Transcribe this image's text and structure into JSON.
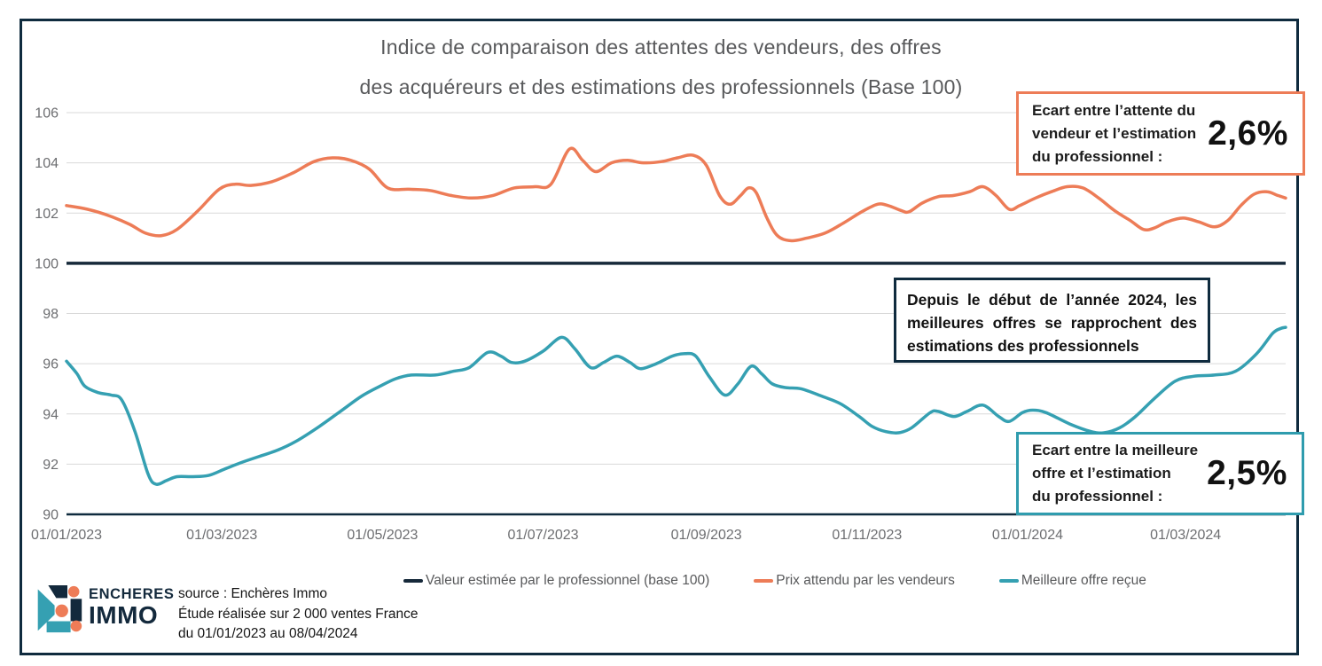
{
  "title": {
    "line1": "Indice de comparaison des attentes des vendeurs, des offres",
    "line2": "des acquéreurs et des estimations des professionnels (Base 100)"
  },
  "colors": {
    "navy": "#0f2b3e",
    "orange": "#ed7c57",
    "teal": "#35a0b2",
    "gridline": "#d9d9d9",
    "axis_label": "#6d6e71",
    "title_gray": "#58595b"
  },
  "chart_data": {
    "type": "line",
    "title": "Indice de comparaison des attentes des vendeurs, des offres des acquéreurs et des estimations des professionnels (Base 100)",
    "xlabel": "",
    "ylabel": "",
    "ylim": [
      90,
      106
    ],
    "ytick_step": 2,
    "grid": "horizontal",
    "legend_position": "bottom",
    "x_axis": {
      "start_date": "01/01/2023",
      "end_date": "08/04/2024",
      "total_days": 463,
      "ticks": [
        {
          "day": 0,
          "label": "01/01/2023"
        },
        {
          "day": 59,
          "label": "01/03/2023"
        },
        {
          "day": 120,
          "label": "01/05/2023"
        },
        {
          "day": 181,
          "label": "01/07/2023"
        },
        {
          "day": 243,
          "label": "01/09/2023"
        },
        {
          "day": 304,
          "label": "01/11/2023"
        },
        {
          "day": 365,
          "label": "01/01/2024"
        },
        {
          "day": 425,
          "label": "01/03/2024"
        }
      ]
    },
    "series": [
      {
        "name": "Valeur estimée par le professionnel (base 100)",
        "type": "baseline",
        "color": "#16293a",
        "value": 100
      },
      {
        "name": "Prix attendu par les vendeurs",
        "type": "line",
        "color": "#ed7c57",
        "points": [
          [
            0,
            102.3
          ],
          [
            8,
            102.15
          ],
          [
            16,
            101.9
          ],
          [
            24,
            101.55
          ],
          [
            30,
            101.2
          ],
          [
            36,
            101.1
          ],
          [
            42,
            101.35
          ],
          [
            50,
            102.1
          ],
          [
            58,
            102.95
          ],
          [
            64,
            103.15
          ],
          [
            70,
            103.1
          ],
          [
            78,
            103.25
          ],
          [
            86,
            103.6
          ],
          [
            94,
            104.05
          ],
          [
            101,
            104.2
          ],
          [
            108,
            104.1
          ],
          [
            115,
            103.75
          ],
          [
            122,
            103.0
          ],
          [
            130,
            102.95
          ],
          [
            138,
            102.9
          ],
          [
            146,
            102.7
          ],
          [
            154,
            102.6
          ],
          [
            162,
            102.7
          ],
          [
            170,
            103.0
          ],
          [
            178,
            103.05
          ],
          [
            184,
            103.15
          ],
          [
            191,
            104.55
          ],
          [
            196,
            104.1
          ],
          [
            201,
            103.65
          ],
          [
            207,
            104.0
          ],
          [
            213,
            104.1
          ],
          [
            219,
            104.0
          ],
          [
            226,
            104.05
          ],
          [
            232,
            104.2
          ],
          [
            238,
            104.3
          ],
          [
            243,
            103.9
          ],
          [
            248,
            102.7
          ],
          [
            252,
            102.35
          ],
          [
            256,
            102.7
          ],
          [
            259,
            103.0
          ],
          [
            262,
            102.8
          ],
          [
            266,
            101.8
          ],
          [
            270,
            101.1
          ],
          [
            275,
            100.9
          ],
          [
            281,
            101.0
          ],
          [
            288,
            101.2
          ],
          [
            295,
            101.6
          ],
          [
            302,
            102.05
          ],
          [
            308,
            102.35
          ],
          [
            312,
            102.3
          ],
          [
            317,
            102.1
          ],
          [
            320,
            102.05
          ],
          [
            325,
            102.4
          ],
          [
            331,
            102.65
          ],
          [
            337,
            102.7
          ],
          [
            343,
            102.85
          ],
          [
            348,
            103.05
          ],
          [
            353,
            102.7
          ],
          [
            358,
            102.15
          ],
          [
            362,
            102.3
          ],
          [
            368,
            102.6
          ],
          [
            374,
            102.85
          ],
          [
            380,
            103.05
          ],
          [
            386,
            103.0
          ],
          [
            392,
            102.6
          ],
          [
            398,
            102.1
          ],
          [
            404,
            101.7
          ],
          [
            409,
            101.35
          ],
          [
            413,
            101.4
          ],
          [
            418,
            101.65
          ],
          [
            424,
            101.8
          ],
          [
            430,
            101.65
          ],
          [
            436,
            101.45
          ],
          [
            441,
            101.7
          ],
          [
            446,
            102.3
          ],
          [
            451,
            102.75
          ],
          [
            456,
            102.85
          ],
          [
            460,
            102.7
          ],
          [
            463,
            102.6
          ]
        ]
      },
      {
        "name": "Meilleure offre reçue",
        "type": "line",
        "color": "#35a0b2",
        "points": [
          [
            0,
            96.1
          ],
          [
            4,
            95.6
          ],
          [
            7,
            95.1
          ],
          [
            12,
            94.85
          ],
          [
            17,
            94.75
          ],
          [
            21,
            94.55
          ],
          [
            26,
            93.3
          ],
          [
            31,
            91.6
          ],
          [
            34,
            91.2
          ],
          [
            38,
            91.35
          ],
          [
            42,
            91.5
          ],
          [
            48,
            91.5
          ],
          [
            54,
            91.55
          ],
          [
            60,
            91.8
          ],
          [
            66,
            92.05
          ],
          [
            73,
            92.3
          ],
          [
            80,
            92.55
          ],
          [
            87,
            92.9
          ],
          [
            96,
            93.5
          ],
          [
            104,
            94.1
          ],
          [
            112,
            94.7
          ],
          [
            119,
            95.1
          ],
          [
            125,
            95.4
          ],
          [
            131,
            95.55
          ],
          [
            140,
            95.55
          ],
          [
            147,
            95.7
          ],
          [
            153,
            95.85
          ],
          [
            160,
            96.45
          ],
          [
            165,
            96.3
          ],
          [
            169,
            96.05
          ],
          [
            174,
            96.1
          ],
          [
            181,
            96.5
          ],
          [
            188,
            97.05
          ],
          [
            193,
            96.6
          ],
          [
            199,
            95.85
          ],
          [
            204,
            96.05
          ],
          [
            209,
            96.3
          ],
          [
            214,
            96.05
          ],
          [
            218,
            95.8
          ],
          [
            224,
            96.0
          ],
          [
            230,
            96.3
          ],
          [
            235,
            96.4
          ],
          [
            239,
            96.3
          ],
          [
            244,
            95.5
          ],
          [
            250,
            94.75
          ],
          [
            255,
            95.2
          ],
          [
            260,
            95.9
          ],
          [
            264,
            95.6
          ],
          [
            268,
            95.2
          ],
          [
            273,
            95.05
          ],
          [
            279,
            95.0
          ],
          [
            287,
            94.7
          ],
          [
            294,
            94.4
          ],
          [
            301,
            93.9
          ],
          [
            306,
            93.5
          ],
          [
            311,
            93.3
          ],
          [
            316,
            93.25
          ],
          [
            321,
            93.45
          ],
          [
            328,
            94.05
          ],
          [
            331,
            94.1
          ],
          [
            337,
            93.9
          ],
          [
            342,
            94.1
          ],
          [
            348,
            94.35
          ],
          [
            354,
            93.9
          ],
          [
            358,
            93.7
          ],
          [
            363,
            94.05
          ],
          [
            367,
            94.15
          ],
          [
            372,
            94.05
          ],
          [
            381,
            93.6
          ],
          [
            389,
            93.3
          ],
          [
            394,
            93.25
          ],
          [
            400,
            93.45
          ],
          [
            406,
            93.9
          ],
          [
            413,
            94.6
          ],
          [
            421,
            95.3
          ],
          [
            428,
            95.5
          ],
          [
            436,
            95.55
          ],
          [
            444,
            95.7
          ],
          [
            452,
            96.4
          ],
          [
            458,
            97.2
          ],
          [
            461,
            97.4
          ],
          [
            463,
            97.45
          ]
        ]
      }
    ]
  },
  "annotations": {
    "seller_gap": {
      "lines": [
        "Ecart entre l’attente du",
        "vendeur et l’estimation",
        "du professionnel :"
      ],
      "value": "2,6%"
    },
    "offer_gap": {
      "lines": [
        "Ecart entre la meilleure",
        "offre et l’estimation",
        "du professionnel :"
      ],
      "value": "2,5%"
    },
    "trend_note": "Depuis le début de l’année 2024, les meilleures offres se rapprochent des estimations des professionnels"
  },
  "legend": {
    "items": [
      {
        "label": "Valeur estimée par le professionnel (base 100)",
        "color": "#16293a"
      },
      {
        "label": "Prix attendu par les vendeurs",
        "color": "#ed7c57"
      },
      {
        "label": "Meilleure offre reçue",
        "color": "#35a0b2"
      }
    ]
  },
  "footer": {
    "logo_line1": "ENCHERES",
    "logo_line2": "IMMO",
    "source_lines": [
      "source : Enchères Immo",
      "Étude réalisée sur 2 000 ventes France",
      "du 01/01/2023 au 08/04/2024"
    ]
  }
}
